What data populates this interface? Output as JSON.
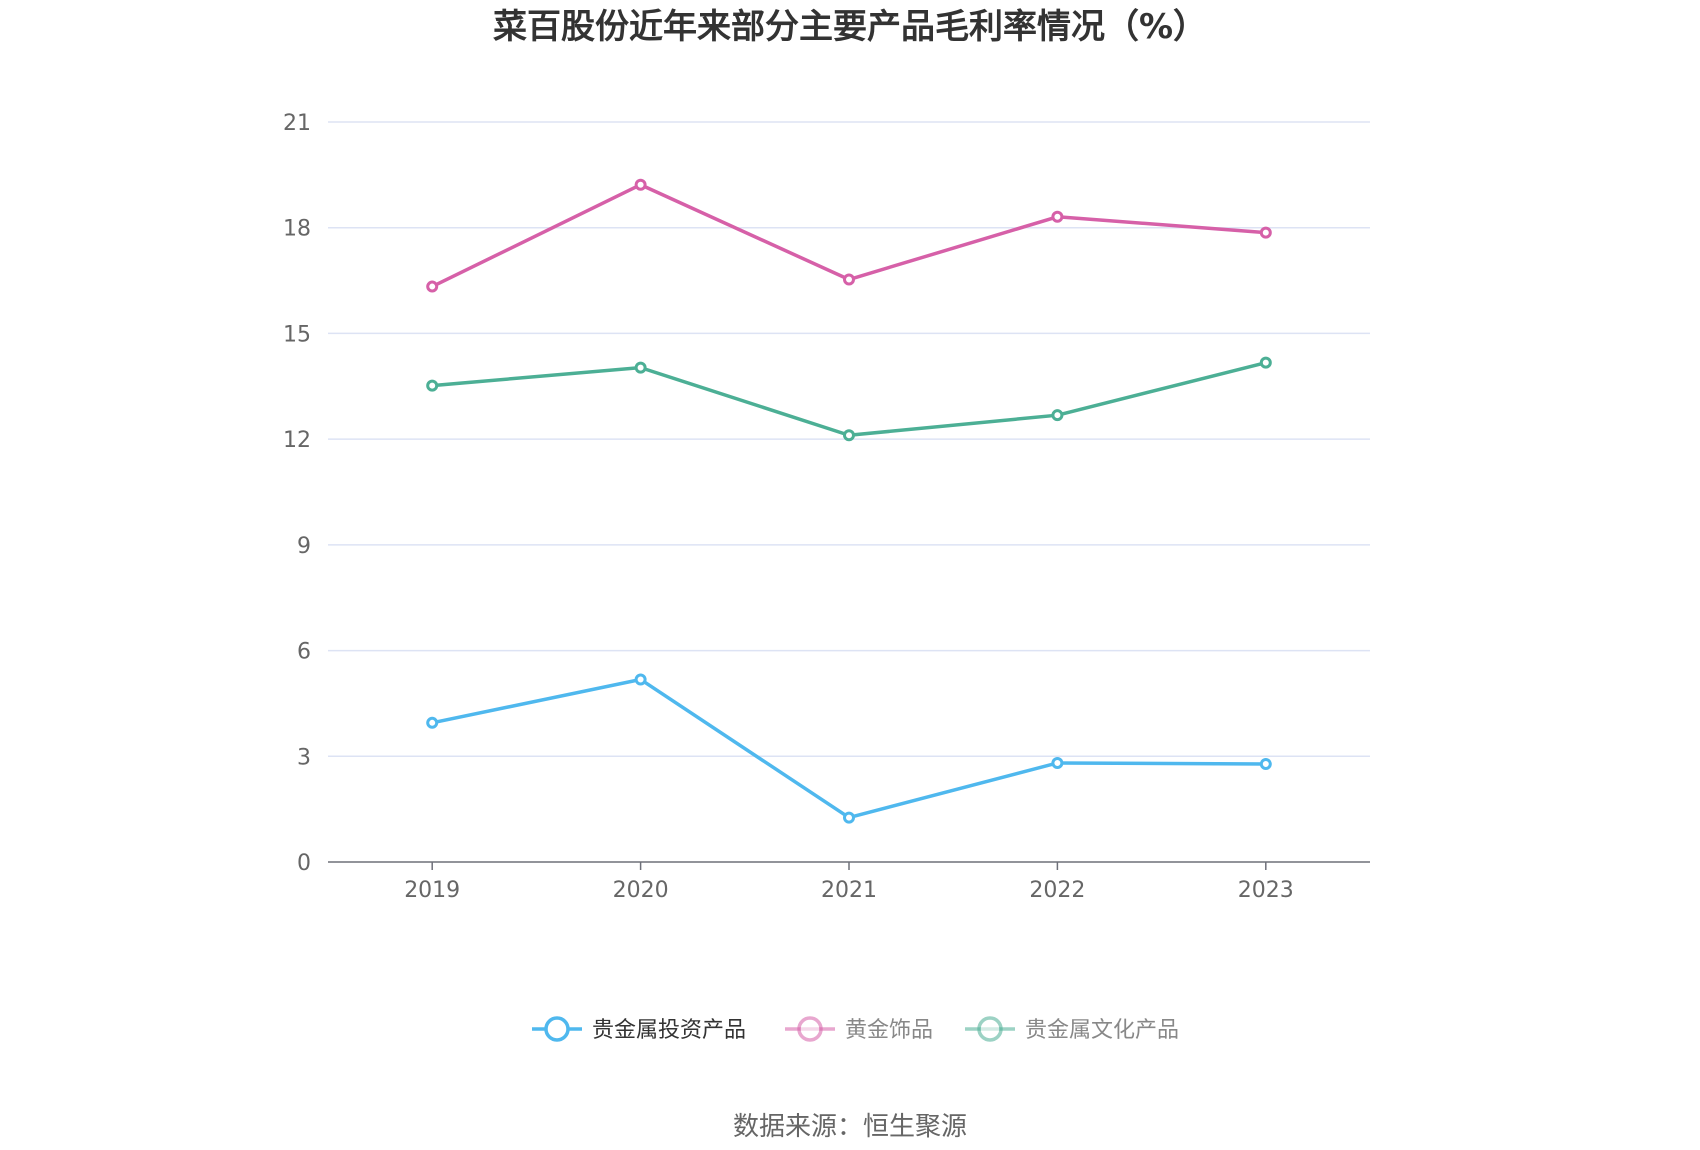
{
  "chart_data": {
    "type": "line",
    "title": "菜百股份近年来部分主要产品毛利率情况（%）",
    "x": [
      "2019",
      "2020",
      "2021",
      "2022",
      "2023"
    ],
    "ylim": [
      0,
      21
    ],
    "yticks": [
      0,
      3,
      6,
      9,
      12,
      15,
      18,
      21
    ],
    "grid": true,
    "legend_position": "bottom",
    "series": [
      {
        "name": "贵金属投资产品",
        "values": [
          3.95,
          5.18,
          1.26,
          2.81,
          2.78
        ],
        "color": "#4fb8ee"
      },
      {
        "name": "黄金饰品",
        "values": [
          16.33,
          19.22,
          16.53,
          18.31,
          17.86
        ],
        "color": "#d660a8"
      },
      {
        "name": "贵金属文化产品",
        "values": [
          13.52,
          14.03,
          12.11,
          12.68,
          14.17
        ],
        "color": "#4caf95"
      }
    ],
    "legend_inactive_color": "#888888",
    "legend_active_color": "#333333",
    "source": "数据来源：恒生聚源"
  }
}
